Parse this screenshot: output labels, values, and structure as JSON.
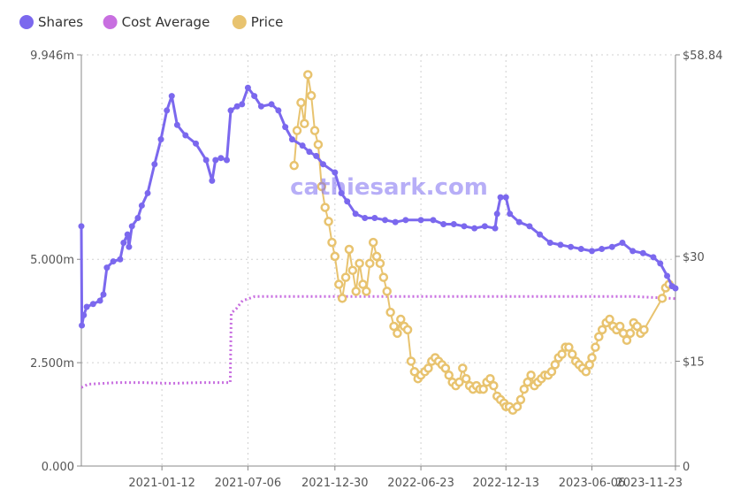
{
  "chart_data": {
    "type": "line",
    "watermark": "cathiesark.com",
    "legend": [
      {
        "name": "Shares",
        "color": "#7b68ee"
      },
      {
        "name": "Cost Average",
        "color": "#c86fe0"
      },
      {
        "name": "Price",
        "color": "#e8c36f"
      }
    ],
    "x_tick_labels": [
      "2021-01-12",
      "2021-07-06",
      "2021-12-30",
      "2022-06-23",
      "2022-12-13",
      "2023-06-06",
      "2023-11-23"
    ],
    "x_range": [
      "2020-08-01",
      "2023-11-23"
    ],
    "y_left": {
      "ticks": [
        0,
        2.5,
        5.0,
        9.946
      ],
      "tick_labels": [
        "0.000",
        "2.500m",
        "5.000m",
        "9.946m"
      ],
      "range": [
        0,
        9.946
      ],
      "unit": "m"
    },
    "y_right": {
      "ticks": [
        0,
        15,
        30,
        58.84
      ],
      "tick_labels": [
        "0",
        "$15",
        "$30",
        "$58.84"
      ],
      "range": [
        0,
        58.84
      ]
    },
    "grid": true,
    "legend_position": "top-left",
    "series": [
      {
        "name": "Shares",
        "axis": "left",
        "points": [
          [
            "2020-08-01",
            5.8
          ],
          [
            "2020-08-02",
            3.4
          ],
          [
            "2020-08-06",
            3.65
          ],
          [
            "2020-08-12",
            3.85
          ],
          [
            "2020-08-25",
            3.92
          ],
          [
            "2020-09-08",
            4.0
          ],
          [
            "2020-09-15",
            4.15
          ],
          [
            "2020-09-22",
            4.8
          ],
          [
            "2020-10-05",
            4.95
          ],
          [
            "2020-10-19",
            5.0
          ],
          [
            "2020-10-26",
            5.4
          ],
          [
            "2020-11-03",
            5.6
          ],
          [
            "2020-11-06",
            5.3
          ],
          [
            "2020-11-12",
            5.8
          ],
          [
            "2020-11-24",
            6.0
          ],
          [
            "2020-12-02",
            6.3
          ],
          [
            "2020-12-14",
            6.6
          ],
          [
            "2020-12-28",
            7.3
          ],
          [
            "2021-01-10",
            7.9
          ],
          [
            "2021-01-22",
            8.6
          ],
          [
            "2021-02-01",
            8.95
          ],
          [
            "2021-02-12",
            8.25
          ],
          [
            "2021-03-01",
            8.0
          ],
          [
            "2021-03-22",
            7.8
          ],
          [
            "2021-04-12",
            7.4
          ],
          [
            "2021-04-24",
            6.9
          ],
          [
            "2021-05-01",
            7.4
          ],
          [
            "2021-05-12",
            7.45
          ],
          [
            "2021-05-24",
            7.4
          ],
          [
            "2021-06-01",
            8.6
          ],
          [
            "2021-06-14",
            8.7
          ],
          [
            "2021-06-24",
            8.75
          ],
          [
            "2021-07-06",
            9.15
          ],
          [
            "2021-07-19",
            8.95
          ],
          [
            "2021-08-02",
            8.7
          ],
          [
            "2021-08-23",
            8.75
          ],
          [
            "2021-09-06",
            8.6
          ],
          [
            "2021-09-20",
            8.2
          ],
          [
            "2021-10-04",
            7.9
          ],
          [
            "2021-10-25",
            7.75
          ],
          [
            "2021-11-08",
            7.6
          ],
          [
            "2021-11-22",
            7.5
          ],
          [
            "2021-12-06",
            7.3
          ],
          [
            "2021-12-30",
            7.1
          ],
          [
            "2022-01-12",
            6.6
          ],
          [
            "2022-01-24",
            6.4
          ],
          [
            "2022-02-10",
            6.1
          ],
          [
            "2022-03-01",
            6.0
          ],
          [
            "2022-03-21",
            6.0
          ],
          [
            "2022-04-11",
            5.95
          ],
          [
            "2022-05-02",
            5.9
          ],
          [
            "2022-05-23",
            5.95
          ],
          [
            "2022-06-23",
            5.95
          ],
          [
            "2022-07-18",
            5.95
          ],
          [
            "2022-08-08",
            5.85
          ],
          [
            "2022-08-29",
            5.85
          ],
          [
            "2022-09-19",
            5.8
          ],
          [
            "2022-10-10",
            5.75
          ],
          [
            "2022-10-31",
            5.8
          ],
          [
            "2022-11-21",
            5.75
          ],
          [
            "2022-11-25",
            6.1
          ],
          [
            "2022-12-02",
            6.5
          ],
          [
            "2022-12-13",
            6.5
          ],
          [
            "2022-12-21",
            6.1
          ],
          [
            "2023-01-09",
            5.9
          ],
          [
            "2023-01-30",
            5.8
          ],
          [
            "2023-02-20",
            5.6
          ],
          [
            "2023-03-13",
            5.4
          ],
          [
            "2023-04-03",
            5.35
          ],
          [
            "2023-04-24",
            5.3
          ],
          [
            "2023-05-15",
            5.25
          ],
          [
            "2023-06-06",
            5.2
          ],
          [
            "2023-06-26",
            5.25
          ],
          [
            "2023-07-17",
            5.3
          ],
          [
            "2023-08-07",
            5.4
          ],
          [
            "2023-08-28",
            5.2
          ],
          [
            "2023-09-18",
            5.15
          ],
          [
            "2023-10-09",
            5.05
          ],
          [
            "2023-10-23",
            4.9
          ],
          [
            "2023-11-06",
            4.6
          ],
          [
            "2023-11-16",
            4.35
          ],
          [
            "2023-11-23",
            4.3
          ]
        ]
      },
      {
        "name": "Cost Average",
        "axis": "left",
        "points": [
          [
            "2020-08-01",
            1.9
          ],
          [
            "2020-08-15",
            1.98
          ],
          [
            "2020-09-15",
            2.0
          ],
          [
            "2020-10-15",
            2.02
          ],
          [
            "2020-12-01",
            2.02
          ],
          [
            "2021-02-01",
            2.0
          ],
          [
            "2021-04-01",
            2.02
          ],
          [
            "2021-05-31",
            2.02
          ],
          [
            "2021-06-02",
            3.7
          ],
          [
            "2021-06-12",
            3.8
          ],
          [
            "2021-06-25",
            4.0
          ],
          [
            "2021-07-20",
            4.1
          ],
          [
            "2021-10-01",
            4.1
          ],
          [
            "2022-03-01",
            4.1
          ],
          [
            "2022-09-01",
            4.1
          ],
          [
            "2023-03-01",
            4.1
          ],
          [
            "2023-09-01",
            4.1
          ],
          [
            "2023-11-23",
            4.05
          ]
        ]
      },
      {
        "name": "Price",
        "axis": "right",
        "points": [
          [
            "2021-10-08",
            43.0
          ],
          [
            "2021-10-14",
            48.0
          ],
          [
            "2021-10-22",
            52.0
          ],
          [
            "2021-10-29",
            49.0
          ],
          [
            "2021-11-05",
            56.0
          ],
          [
            "2021-11-12",
            53.0
          ],
          [
            "2021-11-19",
            48.0
          ],
          [
            "2021-11-26",
            46.0
          ],
          [
            "2021-12-03",
            40.0
          ],
          [
            "2021-12-10",
            37.0
          ],
          [
            "2021-12-17",
            35.0
          ],
          [
            "2021-12-24",
            32.0
          ],
          [
            "2021-12-30",
            30.0
          ],
          [
            "2022-01-07",
            26.0
          ],
          [
            "2022-01-14",
            24.0
          ],
          [
            "2022-01-21",
            27.0
          ],
          [
            "2022-01-28",
            31.0
          ],
          [
            "2022-02-04",
            28.0
          ],
          [
            "2022-02-11",
            25.0
          ],
          [
            "2022-02-18",
            29.0
          ],
          [
            "2022-02-25",
            26.0
          ],
          [
            "2022-03-04",
            25.0
          ],
          [
            "2022-03-11",
            29.0
          ],
          [
            "2022-03-18",
            32.0
          ],
          [
            "2022-03-25",
            30.0
          ],
          [
            "2022-04-01",
            29.0
          ],
          [
            "2022-04-08",
            27.0
          ],
          [
            "2022-04-15",
            25.0
          ],
          [
            "2022-04-22",
            22.0
          ],
          [
            "2022-04-29",
            20.0
          ],
          [
            "2022-05-06",
            19.0
          ],
          [
            "2022-05-13",
            21.0
          ],
          [
            "2022-05-20",
            20.0
          ],
          [
            "2022-05-27",
            19.5
          ],
          [
            "2022-06-03",
            15.0
          ],
          [
            "2022-06-10",
            13.5
          ],
          [
            "2022-06-17",
            12.5
          ],
          [
            "2022-06-23",
            13.0
          ],
          [
            "2022-07-01",
            13.5
          ],
          [
            "2022-07-08",
            14.0
          ],
          [
            "2022-07-15",
            15.0
          ],
          [
            "2022-07-22",
            15.5
          ],
          [
            "2022-07-29",
            15.0
          ],
          [
            "2022-08-05",
            14.5
          ],
          [
            "2022-08-12",
            14.0
          ],
          [
            "2022-08-19",
            13.0
          ],
          [
            "2022-08-26",
            12.0
          ],
          [
            "2022-09-02",
            11.5
          ],
          [
            "2022-09-09",
            12.0
          ],
          [
            "2022-09-16",
            14.0
          ],
          [
            "2022-09-23",
            12.5
          ],
          [
            "2022-09-30",
            11.5
          ],
          [
            "2022-10-07",
            11.0
          ],
          [
            "2022-10-14",
            11.5
          ],
          [
            "2022-10-21",
            11.0
          ],
          [
            "2022-10-28",
            11.0
          ],
          [
            "2022-11-04",
            12.0
          ],
          [
            "2022-11-11",
            12.5
          ],
          [
            "2022-11-18",
            11.5
          ],
          [
            "2022-11-25",
            10.0
          ],
          [
            "2022-12-02",
            9.5
          ],
          [
            "2022-12-09",
            9.0
          ],
          [
            "2022-12-13",
            8.5
          ],
          [
            "2022-12-20",
            8.5
          ],
          [
            "2022-12-27",
            8.0
          ],
          [
            "2023-01-05",
            8.5
          ],
          [
            "2023-01-12",
            9.5
          ],
          [
            "2023-01-19",
            11.0
          ],
          [
            "2023-01-26",
            12.0
          ],
          [
            "2023-02-02",
            13.0
          ],
          [
            "2023-02-09",
            11.5
          ],
          [
            "2023-02-16",
            12.0
          ],
          [
            "2023-02-23",
            12.5
          ],
          [
            "2023-03-02",
            13.0
          ],
          [
            "2023-03-09",
            13.0
          ],
          [
            "2023-03-16",
            13.5
          ],
          [
            "2023-03-23",
            14.5
          ],
          [
            "2023-03-30",
            15.5
          ],
          [
            "2023-04-06",
            16.0
          ],
          [
            "2023-04-13",
            17.0
          ],
          [
            "2023-04-20",
            17.0
          ],
          [
            "2023-04-27",
            16.0
          ],
          [
            "2023-05-04",
            15.0
          ],
          [
            "2023-05-11",
            14.5
          ],
          [
            "2023-05-18",
            14.0
          ],
          [
            "2023-05-25",
            13.5
          ],
          [
            "2023-06-01",
            14.5
          ],
          [
            "2023-06-06",
            15.5
          ],
          [
            "2023-06-13",
            17.0
          ],
          [
            "2023-06-20",
            18.5
          ],
          [
            "2023-06-27",
            19.5
          ],
          [
            "2023-07-05",
            20.5
          ],
          [
            "2023-07-12",
            21.0
          ],
          [
            "2023-07-19",
            20.0
          ],
          [
            "2023-07-26",
            19.5
          ],
          [
            "2023-08-02",
            20.0
          ],
          [
            "2023-08-09",
            19.0
          ],
          [
            "2023-08-16",
            18.0
          ],
          [
            "2023-08-23",
            19.0
          ],
          [
            "2023-08-30",
            20.5
          ],
          [
            "2023-09-06",
            20.0
          ],
          [
            "2023-09-13",
            19.0
          ],
          [
            "2023-09-20",
            19.5
          ],
          [
            "2023-10-27",
            24.0
          ],
          [
            "2023-11-03",
            25.5
          ],
          [
            "2023-11-10",
            26.0
          ]
        ]
      }
    ]
  }
}
